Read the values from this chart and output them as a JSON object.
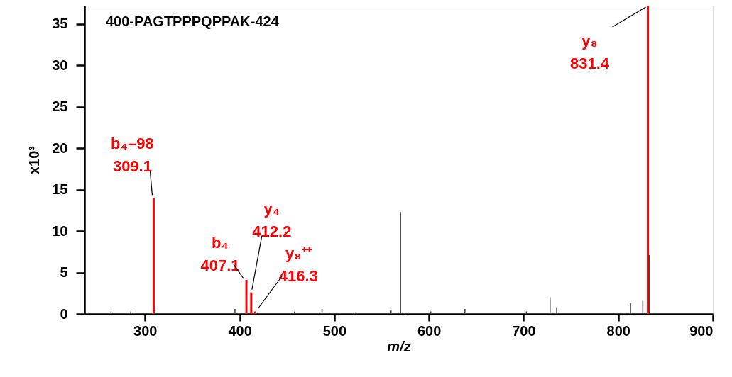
{
  "chart_data": {
    "type": "bar",
    "title": "400-PAGTPPPQPPAK-424",
    "xlabel": "m/z",
    "ylabel": "x10³",
    "xlim": [
      236,
      900
    ],
    "xticks": [
      300,
      400,
      500,
      600,
      700,
      800,
      900
    ],
    "ylim": [
      0,
      37.2
    ],
    "yticks": [
      0,
      5,
      10,
      15,
      20,
      25,
      30,
      35
    ],
    "grid": false,
    "legend": false,
    "series": [
      {
        "color": "#404040",
        "x": [
          264,
          285,
          310.5,
          395,
          458,
          487,
          522,
          560,
          570,
          578,
          602,
          638,
          703,
          728,
          735,
          813,
          826,
          832.8
        ],
        "values": [
          0.3,
          0.3,
          0.7,
          0.6,
          0.3,
          0.6,
          0.2,
          0.4,
          12.3,
          0.2,
          0.3,
          0.6,
          0.3,
          2.0,
          0.8,
          1.3,
          1.6,
          7.1
        ]
      },
      {
        "color": "#ff0000",
        "x": [
          309.1,
          407.1,
          412.2,
          416.3,
          831.4
        ],
        "values": [
          14.0,
          4.1,
          2.6,
          0.3,
          37.2
        ]
      }
    ],
    "annotations": [
      {
        "text": "b₄–98\n309.1",
        "x": 309.1,
        "y": 14.0
      },
      {
        "text": "b₄\n407.1",
        "x": 407.1,
        "y": 4.1
      },
      {
        "text": "y₄\n412.2",
        "x": 412.2,
        "y": 2.6
      },
      {
        "text": "y₈⁺⁺\n416.3",
        "x": 416.3,
        "y": 0.3
      },
      {
        "text": "y₈\n831.4",
        "x": 831.4,
        "y": 37.2
      }
    ]
  }
}
